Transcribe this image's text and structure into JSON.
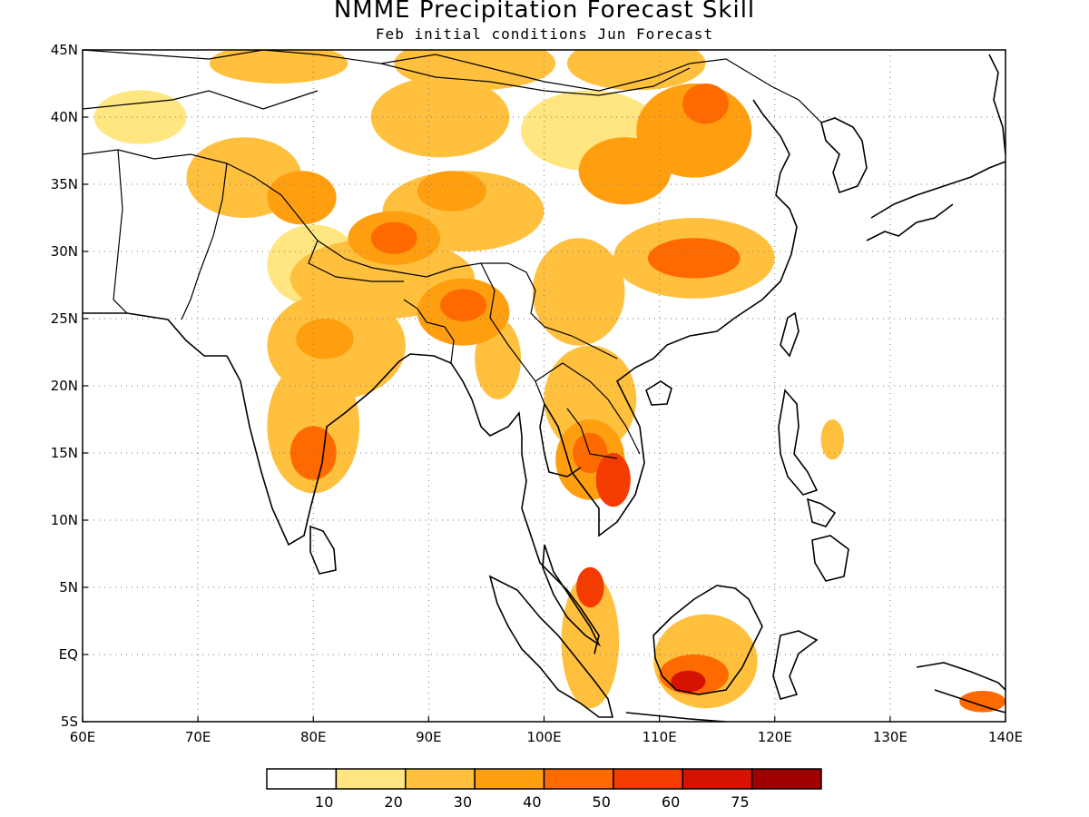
{
  "title": "NMME Precipitation Forecast Skill",
  "subtitle": "Feb initial conditions  Jun Forecast",
  "map": {
    "lon_range": [
      60,
      140
    ],
    "lat_range": [
      -5,
      45
    ],
    "x_ticks": [
      "60E",
      "70E",
      "80E",
      "90E",
      "100E",
      "110E",
      "120E",
      "130E",
      "140E"
    ],
    "x_tick_values": [
      60,
      70,
      80,
      90,
      100,
      110,
      120,
      130,
      140
    ],
    "y_ticks": [
      "45N",
      "40N",
      "35N",
      "30N",
      "25N",
      "20N",
      "15N",
      "10N",
      "5N",
      "EQ",
      "5S"
    ],
    "y_tick_values": [
      45,
      40,
      35,
      30,
      25,
      20,
      15,
      10,
      5,
      0,
      -5
    ],
    "grid": "dotted"
  },
  "colorbar": {
    "colors": [
      "#ffffff",
      "#ffe680",
      "#ffc03d",
      "#ff9f10",
      "#ff6a00",
      "#f53c00",
      "#d61200",
      "#a00000"
    ],
    "labels": [
      "10",
      "20",
      "30",
      "40",
      "50",
      "60",
      "75"
    ]
  },
  "skill_regions": [
    {
      "lon": 65,
      "lat": 40,
      "rx": 4,
      "ry": 2,
      "level": 1
    },
    {
      "lon": 77,
      "lat": 44,
      "rx": 6,
      "ry": 1.5,
      "level": 2
    },
    {
      "lon": 74,
      "lat": 35.5,
      "rx": 5,
      "ry": 3,
      "level": 2
    },
    {
      "lon": 79,
      "lat": 34,
      "rx": 3,
      "ry": 2,
      "level": 3
    },
    {
      "lon": 80,
      "lat": 29,
      "rx": 4,
      "ry": 3,
      "level": 1
    },
    {
      "lon": 82,
      "lat": 23,
      "rx": 6,
      "ry": 4,
      "level": 2
    },
    {
      "lon": 81,
      "lat": 23.5,
      "rx": 2.5,
      "ry": 1.5,
      "level": 3
    },
    {
      "lon": 80,
      "lat": 17,
      "rx": 4,
      "ry": 5,
      "level": 2
    },
    {
      "lon": 80,
      "lat": 15,
      "rx": 2,
      "ry": 2,
      "level": 4
    },
    {
      "lon": 86,
      "lat": 28,
      "rx": 8,
      "ry": 3,
      "level": 2
    },
    {
      "lon": 87,
      "lat": 31,
      "rx": 4,
      "ry": 2,
      "level": 3
    },
    {
      "lon": 87,
      "lat": 31,
      "rx": 2,
      "ry": 1.2,
      "level": 4
    },
    {
      "lon": 93,
      "lat": 33,
      "rx": 7,
      "ry": 3,
      "level": 2
    },
    {
      "lon": 92,
      "lat": 34.5,
      "rx": 3,
      "ry": 1.5,
      "level": 3
    },
    {
      "lon": 91,
      "lat": 40,
      "rx": 6,
      "ry": 3,
      "level": 2
    },
    {
      "lon": 94,
      "lat": 44,
      "rx": 7,
      "ry": 2,
      "level": 2
    },
    {
      "lon": 93,
      "lat": 25.5,
      "rx": 4,
      "ry": 2.5,
      "level": 3
    },
    {
      "lon": 93,
      "lat": 26,
      "rx": 2,
      "ry": 1.2,
      "level": 4
    },
    {
      "lon": 96,
      "lat": 22,
      "rx": 2,
      "ry": 3,
      "level": 2
    },
    {
      "lon": 104,
      "lat": 39,
      "rx": 6,
      "ry": 3,
      "level": 1
    },
    {
      "lon": 108,
      "lat": 44,
      "rx": 6,
      "ry": 2,
      "level": 2
    },
    {
      "lon": 107,
      "lat": 36,
      "rx": 4,
      "ry": 2.5,
      "level": 3
    },
    {
      "lon": 113,
      "lat": 39,
      "rx": 5,
      "ry": 3.5,
      "level": 3
    },
    {
      "lon": 114,
      "lat": 41,
      "rx": 2,
      "ry": 1.5,
      "level": 4
    },
    {
      "lon": 113,
      "lat": 29.5,
      "rx": 7,
      "ry": 3,
      "level": 2
    },
    {
      "lon": 113,
      "lat": 29.5,
      "rx": 4,
      "ry": 1.5,
      "level": 4
    },
    {
      "lon": 103,
      "lat": 27,
      "rx": 4,
      "ry": 4,
      "level": 2
    },
    {
      "lon": 104,
      "lat": 19,
      "rx": 4,
      "ry": 4,
      "level": 2
    },
    {
      "lon": 104,
      "lat": 14.5,
      "rx": 3,
      "ry": 3,
      "level": 3
    },
    {
      "lon": 104,
      "lat": 15,
      "rx": 1.5,
      "ry": 1.5,
      "level": 4
    },
    {
      "lon": 106,
      "lat": 13,
      "rx": 1.5,
      "ry": 2,
      "level": 5
    },
    {
      "lon": 104,
      "lat": 1,
      "rx": 2.5,
      "ry": 5,
      "level": 2
    },
    {
      "lon": 104,
      "lat": 5,
      "rx": 1.2,
      "ry": 1.5,
      "level": 5
    },
    {
      "lon": 114,
      "lat": -0.5,
      "rx": 4.5,
      "ry": 3.5,
      "level": 2
    },
    {
      "lon": 113,
      "lat": -1.5,
      "rx": 3,
      "ry": 1.5,
      "level": 4
    },
    {
      "lon": 112.5,
      "lat": -2,
      "rx": 1.5,
      "ry": 0.8,
      "level": 6
    },
    {
      "lon": 138,
      "lat": -3.5,
      "rx": 2,
      "ry": 0.8,
      "level": 4
    },
    {
      "lon": 125,
      "lat": 16,
      "rx": 1,
      "ry": 1.5,
      "level": 2
    }
  ]
}
